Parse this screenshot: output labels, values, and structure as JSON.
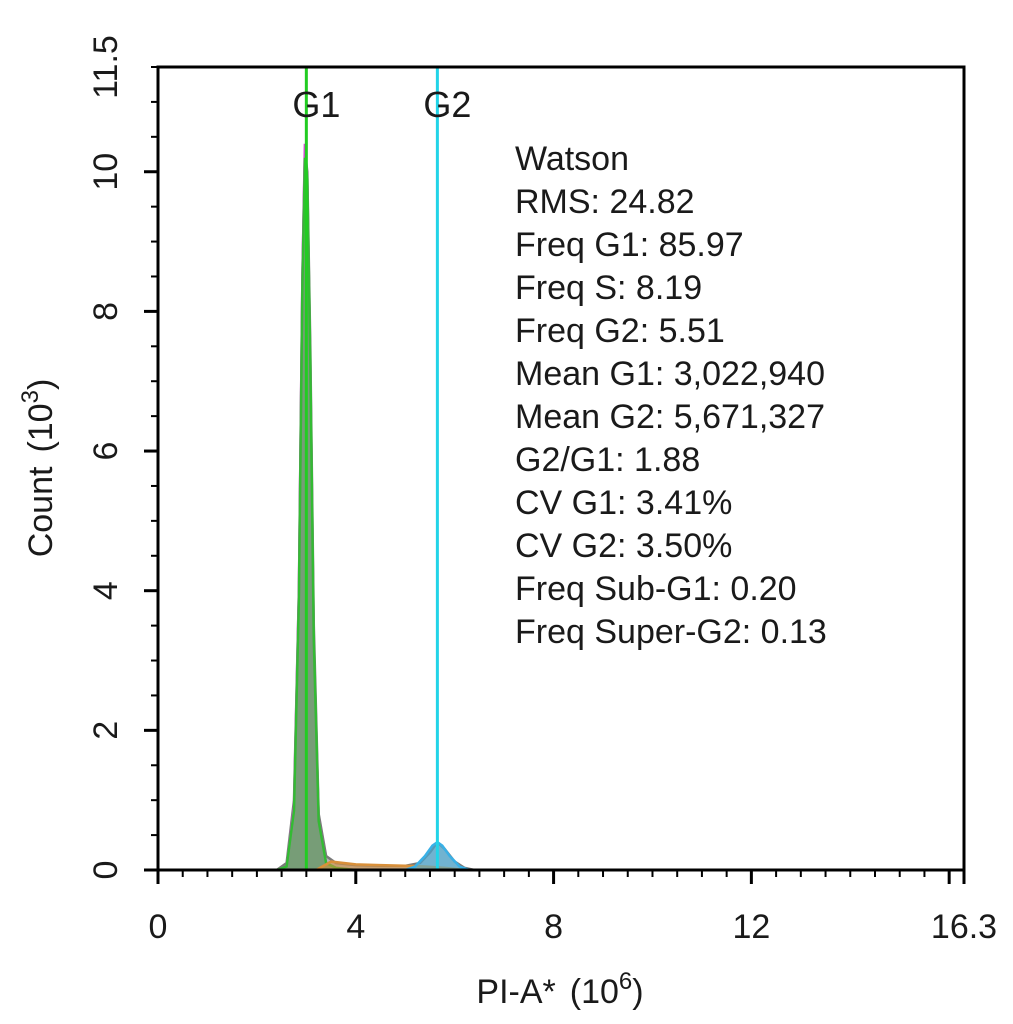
{
  "chart_data": {
    "type": "area",
    "xlabel": "PI-A*",
    "xlabel_unit_base": "(10",
    "xlabel_unit_exp": "6",
    "xlabel_unit_close": ")",
    "ylabel": "Count",
    "ylabel_unit_base": "(10",
    "ylabel_unit_exp": "3",
    "ylabel_unit_close": ")",
    "xlim": [
      0,
      16.3
    ],
    "ylim": [
      0,
      11.5
    ],
    "x_ticks": [
      0,
      4,
      8,
      12,
      16.3
    ],
    "x_tick_labels": [
      "0",
      "4",
      "8",
      "12",
      "16.3"
    ],
    "y_ticks": [
      0,
      2,
      4,
      6,
      8,
      10,
      11.5
    ],
    "y_tick_labels": [
      "0",
      "2",
      "4",
      "6",
      "8",
      "10",
      "11.5"
    ],
    "markers": [
      {
        "label": "G1",
        "x": 3.0,
        "color": "#22cc22"
      },
      {
        "label": "G2",
        "x": 5.65,
        "color": "#22d4e8"
      }
    ],
    "series": [
      {
        "color": "#7a7a7a",
        "x": [
          2.4,
          2.6,
          2.75,
          2.85,
          2.92,
          2.97,
          3.02,
          3.08,
          3.15,
          3.25,
          3.4,
          3.6,
          4.0,
          4.5,
          5.0,
          5.3,
          5.5,
          5.65,
          5.8,
          6.0,
          6.2,
          6.4
        ],
        "y": [
          0,
          0.1,
          1.0,
          4.0,
          8.5,
          10.3,
          10.0,
          7.5,
          3.5,
          0.8,
          0.2,
          0.1,
          0.07,
          0.06,
          0.06,
          0.1,
          0.25,
          0.4,
          0.3,
          0.12,
          0.03,
          0
        ]
      },
      {
        "color": "#d946d9",
        "x": [
          2.4,
          2.6,
          2.75,
          2.85,
          2.92,
          2.97,
          3.02,
          3.08,
          3.15,
          3.25,
          3.4,
          3.6,
          4.0
        ],
        "y": [
          0,
          0.05,
          0.9,
          4.0,
          8.5,
          10.4,
          9.8,
          7.2,
          3.2,
          0.7,
          0.1,
          0.03,
          0
        ]
      },
      {
        "color": "#33bb33",
        "x": [
          2.4,
          2.6,
          2.75,
          2.85,
          2.92,
          2.97,
          3.02,
          3.08,
          3.15,
          3.25,
          3.4,
          3.6,
          4.0
        ],
        "y": [
          0,
          0.05,
          0.85,
          3.9,
          8.4,
          10.2,
          9.9,
          7.3,
          3.3,
          0.7,
          0.1,
          0.03,
          0
        ]
      },
      {
        "color": "#d9903a",
        "x": [
          3.2,
          3.5,
          4.0,
          4.5,
          5.0,
          5.4,
          5.8,
          6.2
        ],
        "y": [
          0,
          0.12,
          0.08,
          0.07,
          0.06,
          0.05,
          0.03,
          0
        ]
      },
      {
        "color": "#39b0e6",
        "x": [
          5.0,
          5.2,
          5.4,
          5.55,
          5.65,
          5.75,
          5.9,
          6.1,
          6.3
        ],
        "y": [
          0,
          0.05,
          0.2,
          0.35,
          0.4,
          0.35,
          0.2,
          0.05,
          0
        ]
      }
    ],
    "annotations": [
      "Watson",
      "RMS: 24.82",
      "Freq G1: 85.97",
      "Freq S: 8.19",
      "Freq G2: 5.51",
      "Mean G1: 3,022,940",
      "Mean G2: 5,671,327",
      "G2/G1: 1.88",
      "CV G1: 3.41%",
      "CV G2: 3.50%",
      "Freq Sub-G1: 0.20",
      "Freq Super-G2: 0.13"
    ]
  }
}
